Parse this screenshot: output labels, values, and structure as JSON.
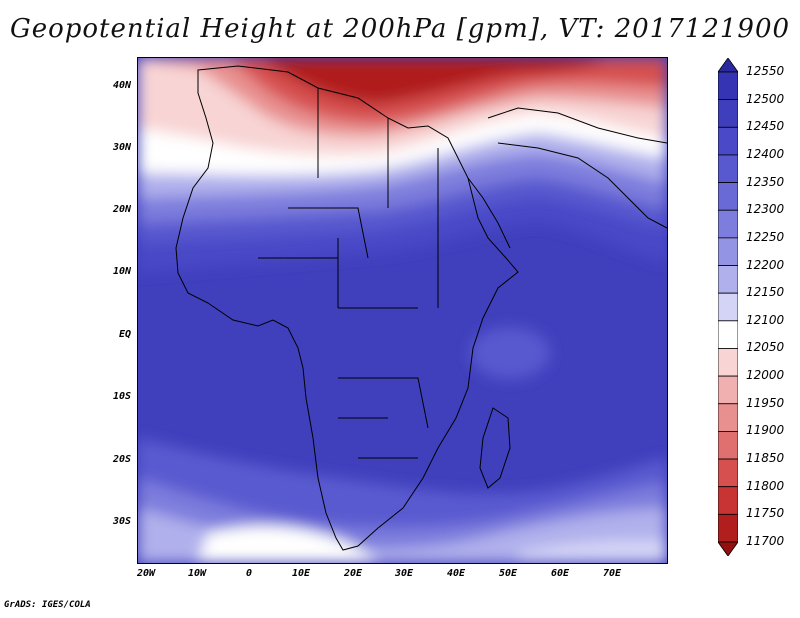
{
  "title": "Geopotential Height at 200hPa [gpm], VT: 2017121900",
  "footer": "GrADS: IGES/COLA",
  "lat_labels": [
    "40N",
    "30N",
    "20N",
    "10N",
    "EQ",
    "10S",
    "20S",
    "30S"
  ],
  "lon_labels": [
    "20W",
    "10W",
    "0",
    "10E",
    "20E",
    "30E",
    "40E",
    "50E",
    "60E",
    "70E"
  ],
  "colorbar": {
    "levels": [
      "12550",
      "12500",
      "12450",
      "12400",
      "12350",
      "12300",
      "12250",
      "12200",
      "12150",
      "12100",
      "12050",
      "12000",
      "11950",
      "11900",
      "11850",
      "11800",
      "11750",
      "11700"
    ],
    "colors": [
      "#2a2aa0",
      "#3434b4",
      "#3f3fbe",
      "#4a4ac8",
      "#5858cf",
      "#6a6ad6",
      "#7d7ddd",
      "#9494e4",
      "#b0b0ec",
      "#d4d4f6",
      "#ffffff",
      "#f8d4d4",
      "#f0b0b0",
      "#e89090",
      "#e07070",
      "#d65050",
      "#c83434",
      "#b01e1e",
      "#941010"
    ]
  },
  "map": {
    "region": "Africa",
    "lon_range": [
      -23,
      80
    ],
    "lat_range": [
      -37,
      45
    ]
  }
}
